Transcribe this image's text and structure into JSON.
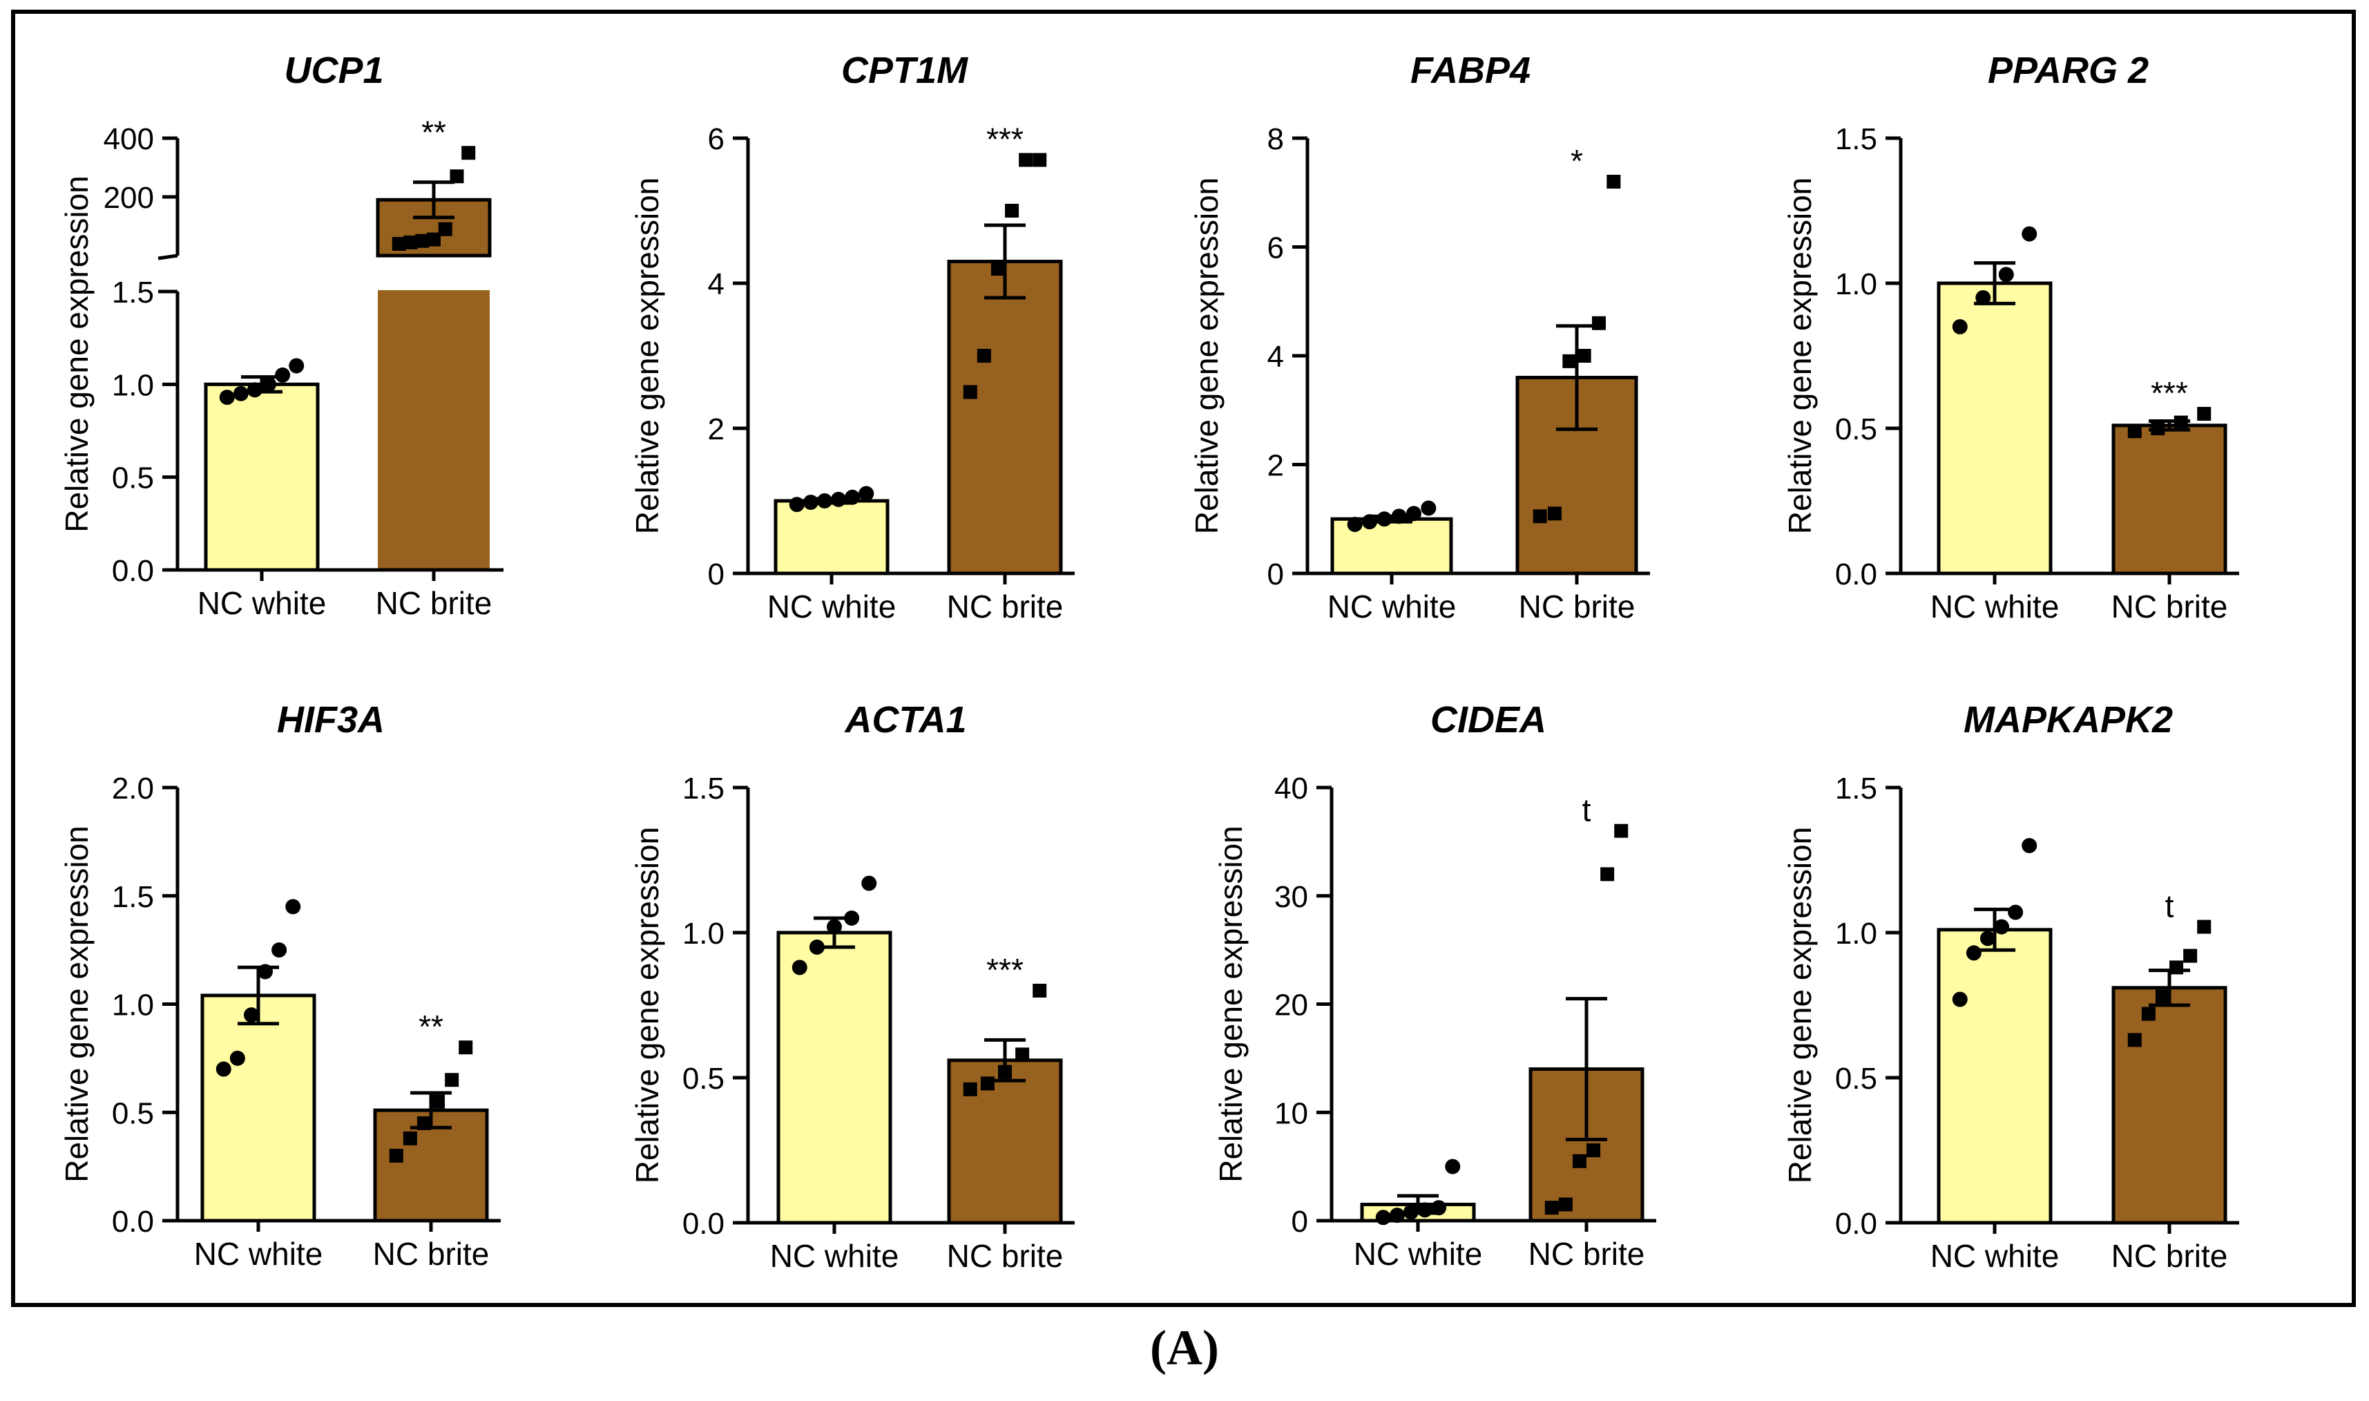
{
  "caption": "(A)",
  "colors": {
    "white": "#FFFCA3",
    "brite": "#97611F"
  },
  "chart_data": [
    {
      "type": "bar",
      "title": "UCP1",
      "ylabel": "Relative gene expression",
      "categories": [
        "NC white",
        "NC brite"
      ],
      "values": [
        1.0,
        190
      ],
      "errors": [
        0.04,
        60
      ],
      "points": [
        [
          0.93,
          0.95,
          0.97,
          1.0,
          1.05,
          1.1
        ],
        [
          40,
          45,
          50,
          55,
          90,
          270,
          350
        ]
      ],
      "significance": [
        "",
        "**"
      ],
      "broken_axis": true,
      "segments": [
        {
          "ylim": [
            0,
            1.5
          ],
          "ticks": [
            "0.0",
            "0.5",
            "1.0",
            "1.5"
          ]
        },
        {
          "ylim": [
            0,
            400
          ],
          "ticks": [
            "200",
            "400"
          ]
        }
      ]
    },
    {
      "type": "bar",
      "title": "CPT1M",
      "ylabel": "Relative gene expression",
      "categories": [
        "NC white",
        "NC brite"
      ],
      "values": [
        1.0,
        4.3
      ],
      "errors": [
        0.03,
        0.5
      ],
      "points": [
        [
          0.95,
          0.98,
          1.0,
          1.02,
          1.05,
          1.1
        ],
        [
          2.5,
          3.0,
          4.2,
          5.0,
          5.7,
          5.7
        ]
      ],
      "significance": [
        "",
        "***"
      ],
      "ylim": [
        0,
        6
      ],
      "ticks": [
        "0",
        "2",
        "4",
        "6"
      ]
    },
    {
      "type": "bar",
      "title": "FABP4",
      "ylabel": "Relative gene expression",
      "categories": [
        "NC white",
        "NC brite"
      ],
      "values": [
        1.0,
        3.6
      ],
      "errors": [
        0.05,
        0.95
      ],
      "points": [
        [
          0.9,
          0.95,
          1.0,
          1.05,
          1.1,
          1.2
        ],
        [
          1.05,
          1.1,
          3.9,
          4.0,
          4.6,
          7.2
        ]
      ],
      "significance": [
        "",
        "*"
      ],
      "ylim": [
        0,
        8
      ],
      "ticks": [
        "0",
        "2",
        "4",
        "6",
        "8"
      ]
    },
    {
      "type": "bar",
      "title": "PPARG 2",
      "ylabel": "Relative gene expression",
      "categories": [
        "NC white",
        "NC brite"
      ],
      "values": [
        1.0,
        0.51
      ],
      "errors": [
        0.07,
        0.015
      ],
      "points": [
        [
          0.85,
          0.95,
          1.03,
          1.17
        ],
        [
          0.49,
          0.5,
          0.52,
          0.55
        ]
      ],
      "significance": [
        "",
        "***"
      ],
      "ylim": [
        0,
        1.5
      ],
      "ticks": [
        "0.0",
        "0.5",
        "1.0",
        "1.5"
      ]
    },
    {
      "type": "bar",
      "title": "HIF3A",
      "ylabel": "Relative gene expression",
      "categories": [
        "NC white",
        "NC brite"
      ],
      "values": [
        1.04,
        0.51
      ],
      "errors": [
        0.13,
        0.08
      ],
      "points": [
        [
          0.7,
          0.75,
          0.95,
          1.15,
          1.25,
          1.45
        ],
        [
          0.3,
          0.38,
          0.45,
          0.55,
          0.65,
          0.8
        ]
      ],
      "significance": [
        "",
        "**"
      ],
      "ylim": [
        0,
        2.0
      ],
      "ticks": [
        "0.0",
        "0.5",
        "1.0",
        "1.5",
        "2.0"
      ]
    },
    {
      "type": "bar",
      "title": "ACTA1",
      "ylabel": "Relative gene expression",
      "categories": [
        "NC white",
        "NC brite"
      ],
      "values": [
        1.0,
        0.56
      ],
      "errors": [
        0.05,
        0.07
      ],
      "points": [
        [
          0.88,
          0.95,
          1.02,
          1.05,
          1.17
        ],
        [
          0.46,
          0.48,
          0.52,
          0.58,
          0.8
        ]
      ],
      "significance": [
        "",
        "***"
      ],
      "ylim": [
        0,
        1.5
      ],
      "ticks": [
        "0.0",
        "0.5",
        "1.0",
        "1.5"
      ]
    },
    {
      "type": "bar",
      "title": "CIDEA",
      "ylabel": "Relative gene expression",
      "categories": [
        "NC white",
        "NC brite"
      ],
      "values": [
        1.5,
        14
      ],
      "errors": [
        0.8,
        6.5
      ],
      "points": [
        [
          0.3,
          0.5,
          0.8,
          1.0,
          1.2,
          5.0
        ],
        [
          1.2,
          1.5,
          5.5,
          6.5,
          32,
          36
        ]
      ],
      "significance": [
        "",
        "t"
      ],
      "ylim": [
        0,
        40
      ],
      "ticks": [
        "0",
        "10",
        "20",
        "30",
        "40"
      ]
    },
    {
      "type": "bar",
      "title": "MAPKAPK2",
      "ylabel": "Relative gene expression",
      "categories": [
        "NC white",
        "NC brite"
      ],
      "values": [
        1.01,
        0.81
      ],
      "errors": [
        0.07,
        0.06
      ],
      "points": [
        [
          0.77,
          0.93,
          0.98,
          1.02,
          1.07,
          1.3
        ],
        [
          0.63,
          0.72,
          0.78,
          0.88,
          0.92,
          1.02
        ]
      ],
      "significance": [
        "",
        "t"
      ],
      "ylim": [
        0,
        1.5
      ],
      "ticks": [
        "0.0",
        "0.5",
        "1.0",
        "1.5"
      ]
    }
  ]
}
